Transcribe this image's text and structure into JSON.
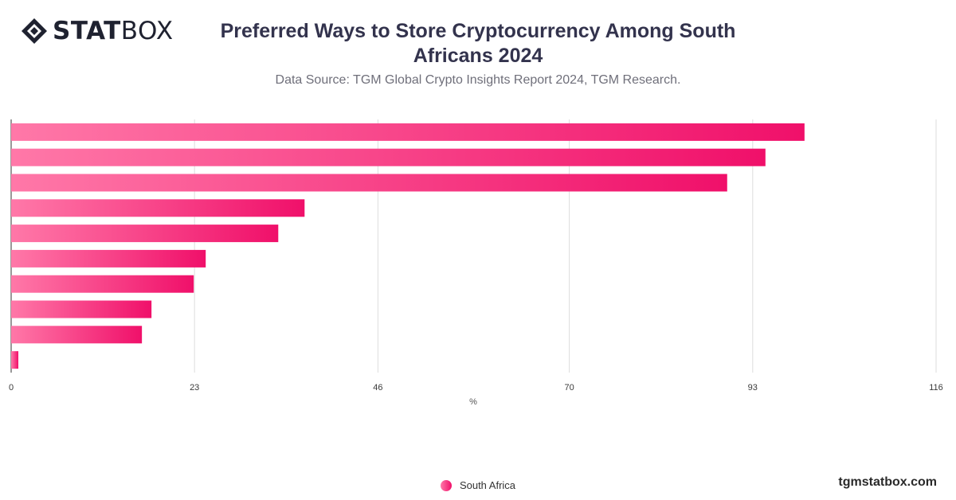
{
  "brand": {
    "bold": "STAT",
    "light": "BOX",
    "site": "tgmstatbox.com"
  },
  "header": {
    "title": "Preferred Ways to Store Cryptocurrency Among South Africans 2024",
    "subtitle": "Data Source: TGM Global Crypto Insights Report 2024, TGM Research."
  },
  "colors": {
    "bar_start": "#ff78a8",
    "bar_end": "#f0106a",
    "grid": "#dddddd"
  },
  "chart_data": {
    "type": "bar",
    "orientation": "horizontal",
    "categories": [
      "",
      "",
      "",
      "",
      "",
      "",
      "",
      "",
      "",
      ""
    ],
    "series": [
      {
        "name": "South Africa",
        "values": [
          99.5,
          94.6,
          89.8,
          36.8,
          33.5,
          24.4,
          22.9,
          17.6,
          16.4,
          0.9
        ]
      }
    ],
    "xlabel": "%",
    "ylabel": "",
    "xlim": [
      0,
      116
    ],
    "xticks": [
      0,
      23,
      46,
      70,
      93,
      116
    ],
    "grid": true,
    "legend_position": "bottom-center"
  }
}
